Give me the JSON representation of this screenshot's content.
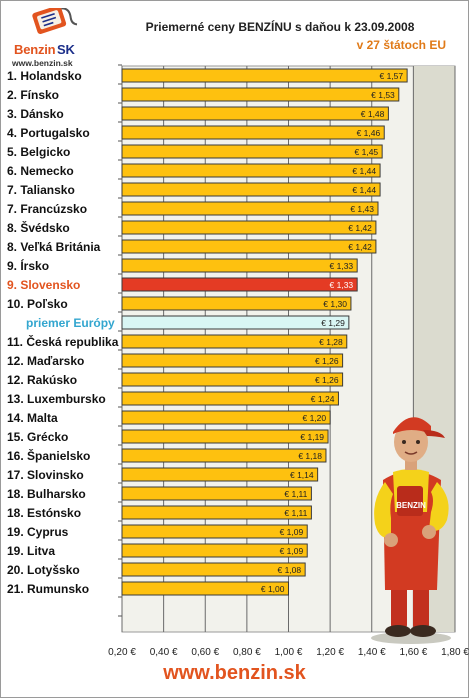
{
  "header": {
    "title": "Priemerné ceny BENZÍNU s daňou k 23.09.2008",
    "subtitle": "v 27 štátoch EU",
    "logo_benzin": "Benzin",
    "logo_sk": "SK",
    "logo_url": "www.benzin.sk"
  },
  "footer": {
    "url": "www.benzin.sk"
  },
  "colors": {
    "bar": "#fec10f",
    "highlight_bar": "#e43b24",
    "europe_bar": "#d9f6f4",
    "highlight_label": "#e2541f",
    "europe_label": "#33a6cf",
    "plot_bg": "#f2f2ec",
    "plot_right_bg": "#dbdbcf"
  },
  "chart_data": {
    "type": "bar",
    "orientation": "horizontal",
    "title": "Priemerné ceny BENZÍNU s daňou k 23.09.2008",
    "subtitle": "v 27 štátoch EU",
    "xlim": [
      0.2,
      1.8
    ],
    "x_ticks": [
      "0,20 €",
      "0,40 €",
      "0,60 €",
      "0,80 €",
      "1,00 €",
      "1,20 €",
      "1,40 €",
      "1,60 €",
      "1,80 €"
    ],
    "x_tick_values": [
      0.2,
      0.4,
      0.6,
      0.8,
      1.0,
      1.2,
      1.4,
      1.6,
      1.8
    ],
    "grid": "vertical",
    "rows": [
      {
        "label": "1. Holandsko",
        "value": 1.57,
        "value_label": "€ 1,57",
        "kind": "normal"
      },
      {
        "label": "2. Fínsko",
        "value": 1.53,
        "value_label": "€ 1,53",
        "kind": "normal"
      },
      {
        "label": "3. Dánsko",
        "value": 1.48,
        "value_label": "€ 1,48",
        "kind": "normal"
      },
      {
        "label": "4. Portugalsko",
        "value": 1.46,
        "value_label": "€ 1,46",
        "kind": "normal"
      },
      {
        "label": "5. Belgicko",
        "value": 1.45,
        "value_label": "€ 1,45",
        "kind": "normal"
      },
      {
        "label": "6. Nemecko",
        "value": 1.44,
        "value_label": "€ 1,44",
        "kind": "normal"
      },
      {
        "label": "7. Taliansko",
        "value": 1.44,
        "value_label": "€ 1,44",
        "kind": "normal"
      },
      {
        "label": "7. Francúzsko",
        "value": 1.43,
        "value_label": "€ 1,43",
        "kind": "normal"
      },
      {
        "label": "8. Švédsko",
        "value": 1.42,
        "value_label": "€ 1,42",
        "kind": "normal"
      },
      {
        "label": "8. Veľká Británia",
        "value": 1.42,
        "value_label": "€ 1,42",
        "kind": "normal"
      },
      {
        "label": "9. Írsko",
        "value": 1.33,
        "value_label": "€ 1,33",
        "kind": "normal"
      },
      {
        "label": "9. Slovensko",
        "value": 1.33,
        "value_label": "€ 1,33",
        "kind": "highlight"
      },
      {
        "label": "10. Poľsko",
        "value": 1.3,
        "value_label": "€ 1,30",
        "kind": "normal"
      },
      {
        "label": "priemer Európy",
        "value": 1.29,
        "value_label": "€ 1,29",
        "kind": "europe"
      },
      {
        "label": "11. Česká republika",
        "value": 1.28,
        "value_label": "€ 1,28",
        "kind": "normal"
      },
      {
        "label": "12. Maďarsko",
        "value": 1.26,
        "value_label": "€ 1,26",
        "kind": "normal"
      },
      {
        "label": "12. Rakúsko",
        "value": 1.26,
        "value_label": "€ 1,26",
        "kind": "normal"
      },
      {
        "label": "13. Luxembursko",
        "value": 1.24,
        "value_label": "€ 1,24",
        "kind": "normal"
      },
      {
        "label": "14. Malta",
        "value": 1.2,
        "value_label": "€ 1,20",
        "kind": "normal"
      },
      {
        "label": "15. Grécko",
        "value": 1.19,
        "value_label": "€ 1,19",
        "kind": "normal"
      },
      {
        "label": "16. Španielsko",
        "value": 1.18,
        "value_label": "€ 1,18",
        "kind": "normal"
      },
      {
        "label": "17. Slovinsko",
        "value": 1.14,
        "value_label": "€ 1,14",
        "kind": "normal"
      },
      {
        "label": "18. Bulharsko",
        "value": 1.11,
        "value_label": "€ 1,11",
        "kind": "normal"
      },
      {
        "label": "18. Estónsko",
        "value": 1.11,
        "value_label": "€ 1,11",
        "kind": "normal"
      },
      {
        "label": "19. Cyprus",
        "value": 1.09,
        "value_label": "€ 1,09",
        "kind": "normal"
      },
      {
        "label": "19. Litva",
        "value": 1.09,
        "value_label": "€ 1,09",
        "kind": "normal"
      },
      {
        "label": "20. Lotyšsko",
        "value": 1.08,
        "value_label": "€ 1,08",
        "kind": "normal"
      },
      {
        "label": "21. Rumunsko",
        "value": 1.0,
        "value_label": "€ 1,00",
        "kind": "normal"
      }
    ]
  }
}
